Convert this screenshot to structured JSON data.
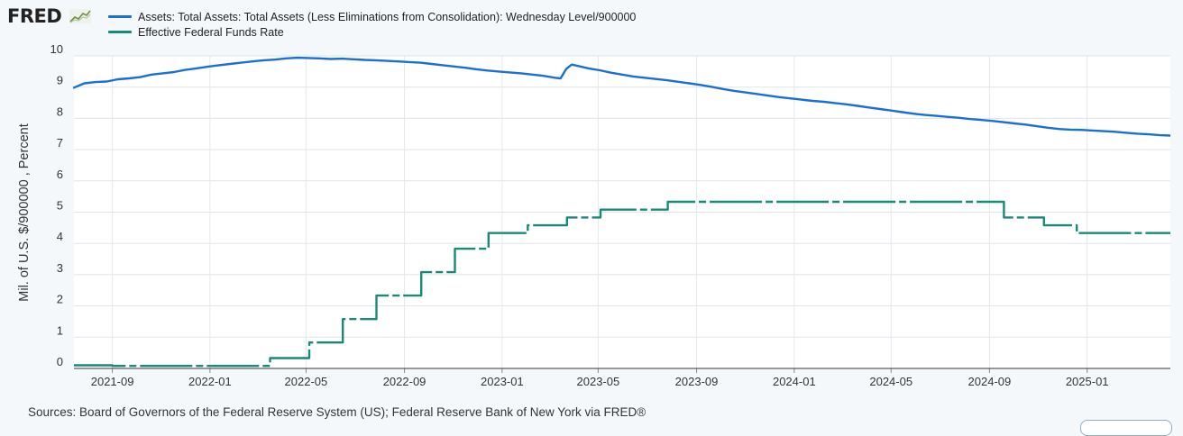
{
  "logo": "FRED",
  "icons": {
    "logo_chart": "trend-chart-icon"
  },
  "chart_data": {
    "type": "line",
    "ylabel": "Mil. of U.S. $/900000 , Percent",
    "ylim": [
      0,
      10
    ],
    "yticks": [
      0,
      1,
      2,
      3,
      4,
      5,
      6,
      7,
      8,
      9,
      10
    ],
    "xlim": [
      "2021-07-15",
      "2025-04-15"
    ],
    "xticks": [
      "2021-09",
      "2022-01",
      "2022-05",
      "2022-09",
      "2023-01",
      "2023-05",
      "2023-09",
      "2024-01",
      "2024-05",
      "2024-09",
      "2025-01"
    ],
    "grid": true,
    "legend_position": "top-left",
    "sources": "Sources: Board of Governors of the Federal Reserve System (US); Federal Reserve Bank of New York via FRED®",
    "series": [
      {
        "name": "Assets: Total Assets: Total Assets (Less Eliminations from Consolidation): Wednesday Level/900000",
        "color": "#1a6fd6",
        "points": [
          [
            "2021-07-14",
            8.97
          ],
          [
            "2021-07-28",
            9.12
          ],
          [
            "2021-08-11",
            9.16
          ],
          [
            "2021-08-25",
            9.18
          ],
          [
            "2021-09-08",
            9.25
          ],
          [
            "2021-09-22",
            9.28
          ],
          [
            "2021-10-06",
            9.32
          ],
          [
            "2021-10-20",
            9.4
          ],
          [
            "2021-11-03",
            9.44
          ],
          [
            "2021-11-17",
            9.48
          ],
          [
            "2021-12-01",
            9.55
          ],
          [
            "2021-12-15",
            9.6
          ],
          [
            "2021-12-29",
            9.65
          ],
          [
            "2022-01-12",
            9.7
          ],
          [
            "2022-01-26",
            9.74
          ],
          [
            "2022-02-09",
            9.78
          ],
          [
            "2022-02-23",
            9.82
          ],
          [
            "2022-03-09",
            9.86
          ],
          [
            "2022-03-23",
            9.88
          ],
          [
            "2022-04-06",
            9.92
          ],
          [
            "2022-04-20",
            9.94
          ],
          [
            "2022-05-04",
            9.93
          ],
          [
            "2022-05-18",
            9.92
          ],
          [
            "2022-06-01",
            9.9
          ],
          [
            "2022-06-15",
            9.91
          ],
          [
            "2022-06-29",
            9.89
          ],
          [
            "2022-07-13",
            9.87
          ],
          [
            "2022-07-27",
            9.86
          ],
          [
            "2022-08-10",
            9.84
          ],
          [
            "2022-08-24",
            9.82
          ],
          [
            "2022-09-07",
            9.8
          ],
          [
            "2022-09-21",
            9.78
          ],
          [
            "2022-10-05",
            9.74
          ],
          [
            "2022-10-19",
            9.7
          ],
          [
            "2022-11-02",
            9.66
          ],
          [
            "2022-11-16",
            9.62
          ],
          [
            "2022-11-30",
            9.57
          ],
          [
            "2022-12-14",
            9.53
          ],
          [
            "2022-12-28",
            9.5
          ],
          [
            "2023-01-11",
            9.47
          ],
          [
            "2023-01-25",
            9.44
          ],
          [
            "2023-02-08",
            9.4
          ],
          [
            "2023-02-22",
            9.36
          ],
          [
            "2023-03-08",
            9.3
          ],
          [
            "2023-03-15",
            9.28
          ],
          [
            "2023-03-22",
            9.58
          ],
          [
            "2023-03-29",
            9.72
          ],
          [
            "2023-04-05",
            9.68
          ],
          [
            "2023-04-19",
            9.6
          ],
          [
            "2023-05-03",
            9.54
          ],
          [
            "2023-05-17",
            9.46
          ],
          [
            "2023-05-31",
            9.4
          ],
          [
            "2023-06-14",
            9.34
          ],
          [
            "2023-06-28",
            9.3
          ],
          [
            "2023-07-12",
            9.26
          ],
          [
            "2023-07-26",
            9.22
          ],
          [
            "2023-08-09",
            9.17
          ],
          [
            "2023-08-23",
            9.12
          ],
          [
            "2023-09-06",
            9.07
          ],
          [
            "2023-09-20",
            9.01
          ],
          [
            "2023-10-04",
            8.94
          ],
          [
            "2023-10-18",
            8.88
          ],
          [
            "2023-11-01",
            8.83
          ],
          [
            "2023-11-15",
            8.78
          ],
          [
            "2023-11-29",
            8.73
          ],
          [
            "2023-12-13",
            8.68
          ],
          [
            "2023-12-27",
            8.64
          ],
          [
            "2024-01-10",
            8.6
          ],
          [
            "2024-01-24",
            8.56
          ],
          [
            "2024-02-07",
            8.53
          ],
          [
            "2024-02-21",
            8.49
          ],
          [
            "2024-03-06",
            8.45
          ],
          [
            "2024-03-20",
            8.4
          ],
          [
            "2024-04-03",
            8.35
          ],
          [
            "2024-04-17",
            8.3
          ],
          [
            "2024-05-01",
            8.25
          ],
          [
            "2024-05-15",
            8.2
          ],
          [
            "2024-05-29",
            8.15
          ],
          [
            "2024-06-12",
            8.11
          ],
          [
            "2024-06-26",
            8.08
          ],
          [
            "2024-07-10",
            8.05
          ],
          [
            "2024-07-24",
            8.02
          ],
          [
            "2024-08-07",
            7.98
          ],
          [
            "2024-08-21",
            7.95
          ],
          [
            "2024-09-04",
            7.92
          ],
          [
            "2024-09-18",
            7.88
          ],
          [
            "2024-10-02",
            7.84
          ],
          [
            "2024-10-16",
            7.8
          ],
          [
            "2024-10-30",
            7.75
          ],
          [
            "2024-11-13",
            7.7
          ],
          [
            "2024-11-27",
            7.66
          ],
          [
            "2024-12-11",
            7.64
          ],
          [
            "2024-12-25",
            7.63
          ],
          [
            "2025-01-08",
            7.61
          ],
          [
            "2025-01-22",
            7.59
          ],
          [
            "2025-02-05",
            7.57
          ],
          [
            "2025-02-19",
            7.54
          ],
          [
            "2025-03-05",
            7.51
          ],
          [
            "2025-03-19",
            7.49
          ],
          [
            "2025-04-02",
            7.46
          ],
          [
            "2025-04-15",
            7.45
          ]
        ]
      },
      {
        "name": "Effective Federal Funds Rate",
        "color": "#1a8a78",
        "step": true,
        "points": [
          [
            "2021-07-15",
            0.1
          ],
          [
            "2021-09-01",
            0.08
          ],
          [
            "2022-03-17",
            0.33
          ],
          [
            "2022-05-05",
            0.83
          ],
          [
            "2022-06-16",
            1.58
          ],
          [
            "2022-07-28",
            2.33
          ],
          [
            "2022-09-22",
            3.08
          ],
          [
            "2022-11-03",
            3.83
          ],
          [
            "2022-12-15",
            4.33
          ],
          [
            "2023-02-02",
            4.58
          ],
          [
            "2023-03-23",
            4.83
          ],
          [
            "2023-05-04",
            5.08
          ],
          [
            "2023-07-27",
            5.33
          ],
          [
            "2024-09-19",
            4.83
          ],
          [
            "2024-11-08",
            4.58
          ],
          [
            "2024-12-19",
            4.33
          ],
          [
            "2025-04-15",
            4.33
          ]
        ]
      }
    ]
  }
}
